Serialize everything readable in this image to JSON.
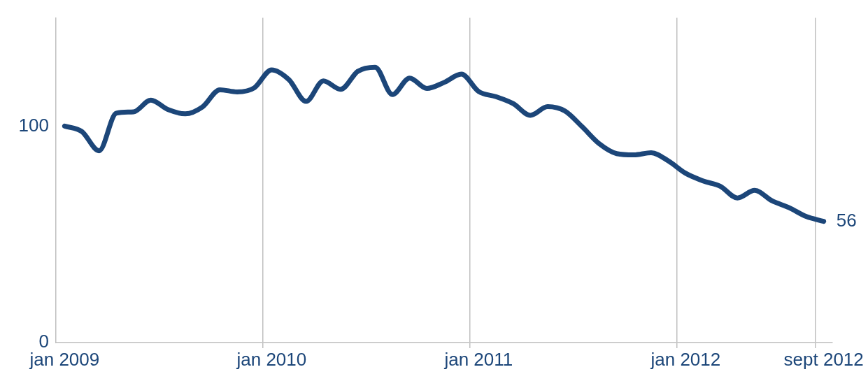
{
  "chart_data": {
    "type": "line",
    "categories": [
      "jan 2009",
      null,
      null,
      null,
      null,
      null,
      null,
      null,
      null,
      null,
      null,
      null,
      "jan 2010",
      null,
      null,
      null,
      null,
      null,
      null,
      null,
      null,
      null,
      null,
      null,
      "jan 2011",
      null,
      null,
      null,
      null,
      null,
      null,
      null,
      null,
      null,
      null,
      null,
      "jan 2012",
      null,
      null,
      null,
      null,
      null,
      null,
      null,
      "sept 2012"
    ],
    "series": [
      {
        "color": "#1c4679",
        "values": [
          100,
          97.5,
          88.6,
          106,
          106.6,
          112,
          107.6,
          105.7,
          108.9,
          116.8,
          115.8,
          117.7,
          126,
          121.5,
          111.4,
          120.9,
          117,
          125.3,
          127.2,
          114.6,
          122.2,
          117.4,
          120.2,
          124,
          116,
          113.6,
          110.4,
          105,
          109,
          107,
          99.7,
          91.8,
          87.3,
          86.7,
          87.7,
          83.9,
          78.2,
          74.7,
          72.2,
          66.8,
          70.3,
          65.5,
          62.3,
          58.2,
          56
        ]
      }
    ],
    "ylim": [
      0,
      150
    ],
    "yticks": [
      0,
      100
    ],
    "grid": "x",
    "marker": "none",
    "legend": false,
    "annotations": [
      {
        "text": "56",
        "x": "sept 2012",
        "y": 56
      }
    ]
  }
}
